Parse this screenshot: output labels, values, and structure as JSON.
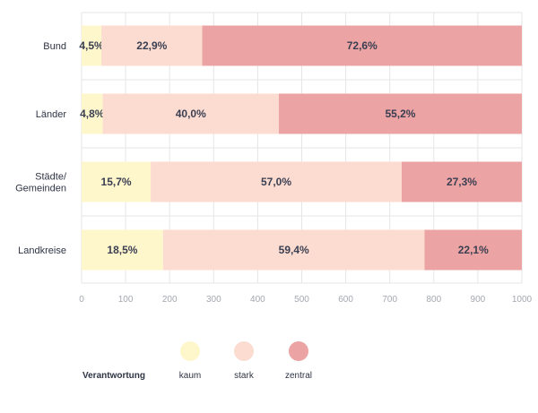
{
  "chart_data": {
    "type": "bar",
    "orientation": "horizontal",
    "stacked": true,
    "categories": [
      [
        "Bund"
      ],
      [
        "Länder"
      ],
      [
        "Städte/",
        "Gemeinden"
      ],
      [
        "Landkreise"
      ]
    ],
    "series": [
      {
        "name": "kaum",
        "color": "#fff7cc",
        "values": [
          45,
          48,
          157,
          185
        ],
        "labels": [
          "4,5%",
          "4,8%",
          "15,7%",
          "18,5%"
        ]
      },
      {
        "name": "stark",
        "color": "#fcdcd1",
        "values": [
          229,
          400,
          570,
          594
        ],
        "labels": [
          "22,9%",
          "40,0%",
          "57,0%",
          "59,4%"
        ]
      },
      {
        "name": "zentral",
        "color": "#eca3a3",
        "values": [
          726,
          552,
          273,
          221
        ],
        "labels": [
          "72,6%",
          "55,2%",
          "27,3%",
          "22,1%"
        ]
      }
    ],
    "xlim": [
      0,
      1000
    ],
    "xticks": [
      "0",
      "100",
      "200",
      "300",
      "400",
      "500",
      "600",
      "700",
      "800",
      "900",
      "1000"
    ],
    "grid": true,
    "legend": {
      "title": "Verantwortung",
      "position": "bottom"
    }
  }
}
